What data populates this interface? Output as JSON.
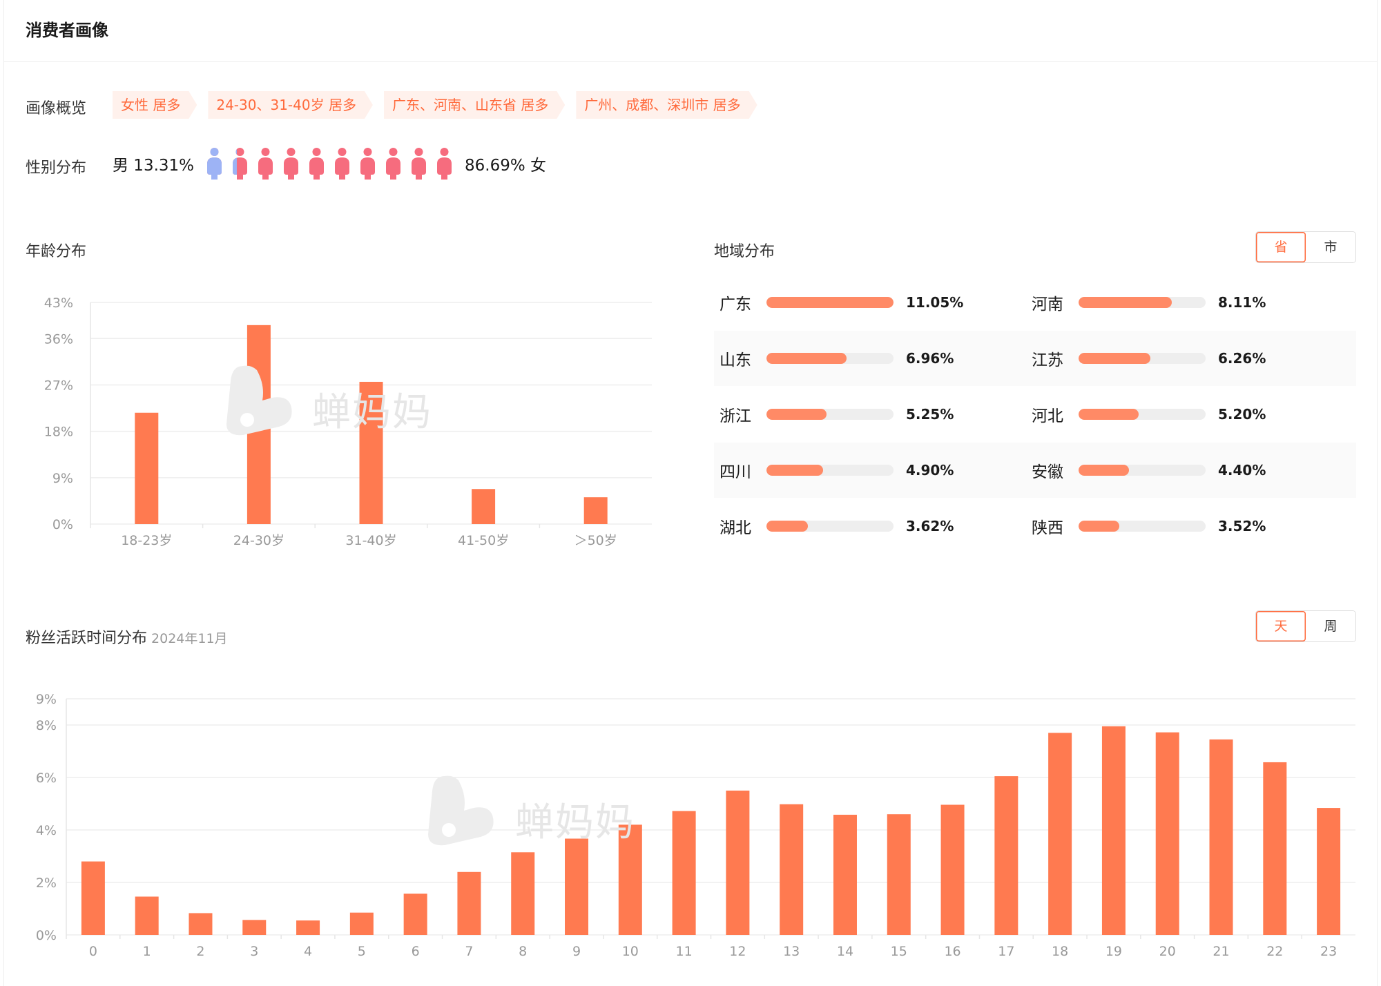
{
  "page": {
    "title": "消费者画像"
  },
  "overview": {
    "label": "画像概览",
    "tags": [
      "女性 居多",
      "24-30、31-40岁 居多",
      "广东、河南、山东省 居多",
      "广州、成都、深圳市 居多"
    ]
  },
  "gender": {
    "label": "性别分布",
    "male_text": "男 13.31%",
    "female_text": "86.69% 女",
    "male_share": 0.1331,
    "icon_count": 10,
    "male_color": "#9db3f5",
    "female_color": "#f66c7e"
  },
  "age_section": {
    "title": "年龄分布"
  },
  "region_section": {
    "title": "地域分布",
    "toggle": [
      "省",
      "市"
    ],
    "toggle_active": 0,
    "items": [
      {
        "name": "广东",
        "value_text": "11.05%",
        "value": 11.05
      },
      {
        "name": "河南",
        "value_text": "8.11%",
        "value": 8.11
      },
      {
        "name": "山东",
        "value_text": "6.96%",
        "value": 6.96
      },
      {
        "name": "江苏",
        "value_text": "6.26%",
        "value": 6.26
      },
      {
        "name": "浙江",
        "value_text": "5.25%",
        "value": 5.25
      },
      {
        "name": "河北",
        "value_text": "5.20%",
        "value": 5.2
      },
      {
        "name": "四川",
        "value_text": "4.90%",
        "value": 4.9
      },
      {
        "name": "安徽",
        "value_text": "4.40%",
        "value": 4.4
      },
      {
        "name": "湖北",
        "value_text": "3.62%",
        "value": 3.62
      },
      {
        "name": "陕西",
        "value_text": "3.52%",
        "value": 3.52
      }
    ],
    "scale_max": 11.05
  },
  "activity_section": {
    "title": "粉丝活跃时间分布",
    "subtitle": "2024年11月",
    "toggle": [
      "天",
      "周"
    ],
    "toggle_active": 0
  },
  "watermark": {
    "text": "蝉妈妈"
  },
  "colors": {
    "accent": "#ff6a3c",
    "bar": "#ff7a50",
    "region_bar": "#ff8a66",
    "grid": "#eeeeee",
    "axis_text": "#999999"
  },
  "chart_data": [
    {
      "type": "bar",
      "categories": [
        "18-23岁",
        "24-30岁",
        "31-40岁",
        "41-50岁",
        "＞50岁"
      ],
      "values": [
        21.6,
        38.6,
        27.6,
        6.8,
        5.2
      ],
      "yticks": [
        "0%",
        "9%",
        "18%",
        "27%",
        "36%",
        "43%"
      ],
      "ylim": [
        0,
        43
      ]
    },
    {
      "type": "bar",
      "categories": [
        "0",
        "1",
        "2",
        "3",
        "4",
        "5",
        "6",
        "7",
        "8",
        "9",
        "10",
        "11",
        "12",
        "13",
        "14",
        "15",
        "16",
        "17",
        "18",
        "19",
        "20",
        "21",
        "22",
        "23"
      ],
      "values": [
        2.8,
        1.46,
        0.83,
        0.57,
        0.55,
        0.85,
        1.57,
        2.4,
        3.15,
        3.67,
        4.2,
        4.72,
        5.5,
        4.98,
        4.58,
        4.6,
        4.96,
        6.05,
        7.7,
        7.95,
        7.72,
        7.45,
        6.58,
        4.84
      ],
      "yticks": [
        "0%",
        "2%",
        "4%",
        "6%",
        "8%",
        "9%"
      ],
      "ylim": [
        0,
        9
      ]
    }
  ]
}
